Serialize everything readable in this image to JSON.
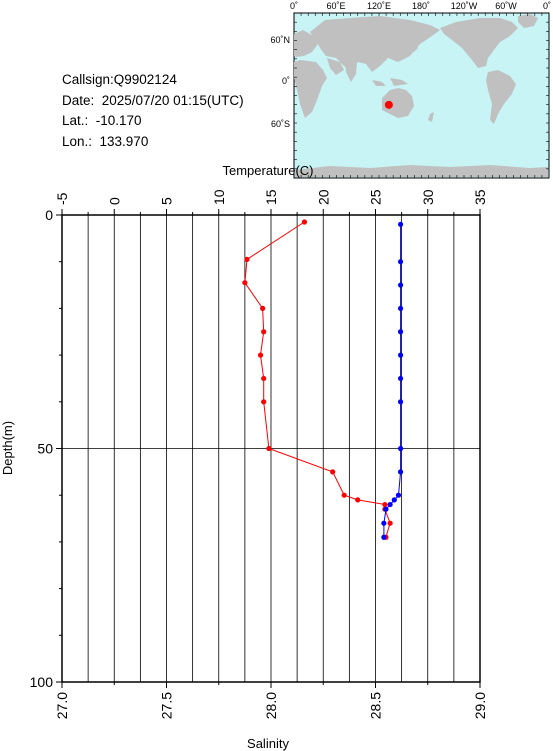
{
  "station": {
    "callsign": "Callsign:Q9902124",
    "date": "Date:  2025/07/20 01:15(UTC)",
    "lat": "Lat.:  -10.170",
    "lon": "Lon.:  133.970"
  },
  "map": {
    "top_labels": [
      "0˚",
      "60˚E",
      "120˚E",
      "180˚",
      "120˚W",
      "60˚W",
      "0˚"
    ],
    "left_labels": [
      "60˚N",
      "0˚",
      "60˚S"
    ],
    "ocean_color": "#c8f4f6",
    "land_color": "#c0c0c0",
    "marker": {
      "lon": 133.97,
      "lat": -10.17,
      "color": "#ff0000"
    }
  },
  "chart_data": {
    "type": "line",
    "y_axis": {
      "label": "Depth(m)",
      "range": [
        0,
        100
      ],
      "ticks": [
        0,
        50,
        100
      ],
      "inverted": true
    },
    "top_axis": {
      "label": "Temperature(C)",
      "range": [
        -5,
        35
      ],
      "ticks": [
        -5,
        0,
        5,
        10,
        15,
        20,
        25,
        30,
        35
      ]
    },
    "bottom_axis": {
      "label": "Salinity",
      "range": [
        27.0,
        29.0
      ],
      "ticks": [
        "27.0",
        "27.5",
        "28.0",
        "28.5",
        "29.0"
      ]
    },
    "grid": true,
    "series": [
      {
        "axis": "top",
        "color": "#ff0000",
        "points": [
          {
            "x": 18.2,
            "y": 1.5
          },
          {
            "x": 12.7,
            "y": 9.5
          },
          {
            "x": 12.5,
            "y": 14.5
          },
          {
            "x": 14.2,
            "y": 20.0
          },
          {
            "x": 14.3,
            "y": 25.0
          },
          {
            "x": 14.0,
            "y": 30.0
          },
          {
            "x": 14.3,
            "y": 35.0
          },
          {
            "x": 14.3,
            "y": 40.0
          },
          {
            "x": 14.8,
            "y": 50.0
          },
          {
            "x": 20.9,
            "y": 55.0
          },
          {
            "x": 22.0,
            "y": 60.0
          },
          {
            "x": 23.3,
            "y": 61.0
          },
          {
            "x": 25.9,
            "y": 62.0
          },
          {
            "x": 25.9,
            "y": 63.0
          },
          {
            "x": 26.4,
            "y": 66.0
          },
          {
            "x": 26.0,
            "y": 69.0
          }
        ]
      },
      {
        "axis": "bottom",
        "color": "#0000ff",
        "points": [
          {
            "x": 28.62,
            "y": 2.0
          },
          {
            "x": 28.62,
            "y": 10.0
          },
          {
            "x": 28.62,
            "y": 15.0
          },
          {
            "x": 28.62,
            "y": 20.0
          },
          {
            "x": 28.62,
            "y": 25.0
          },
          {
            "x": 28.62,
            "y": 30.0
          },
          {
            "x": 28.62,
            "y": 35.0
          },
          {
            "x": 28.62,
            "y": 40.0
          },
          {
            "x": 28.62,
            "y": 50.0
          },
          {
            "x": 28.62,
            "y": 55.0
          },
          {
            "x": 28.61,
            "y": 60.0
          },
          {
            "x": 28.59,
            "y": 61.0
          },
          {
            "x": 28.57,
            "y": 62.0
          },
          {
            "x": 28.55,
            "y": 63.0
          },
          {
            "x": 28.54,
            "y": 66.0
          },
          {
            "x": 28.54,
            "y": 69.0
          }
        ]
      }
    ]
  }
}
